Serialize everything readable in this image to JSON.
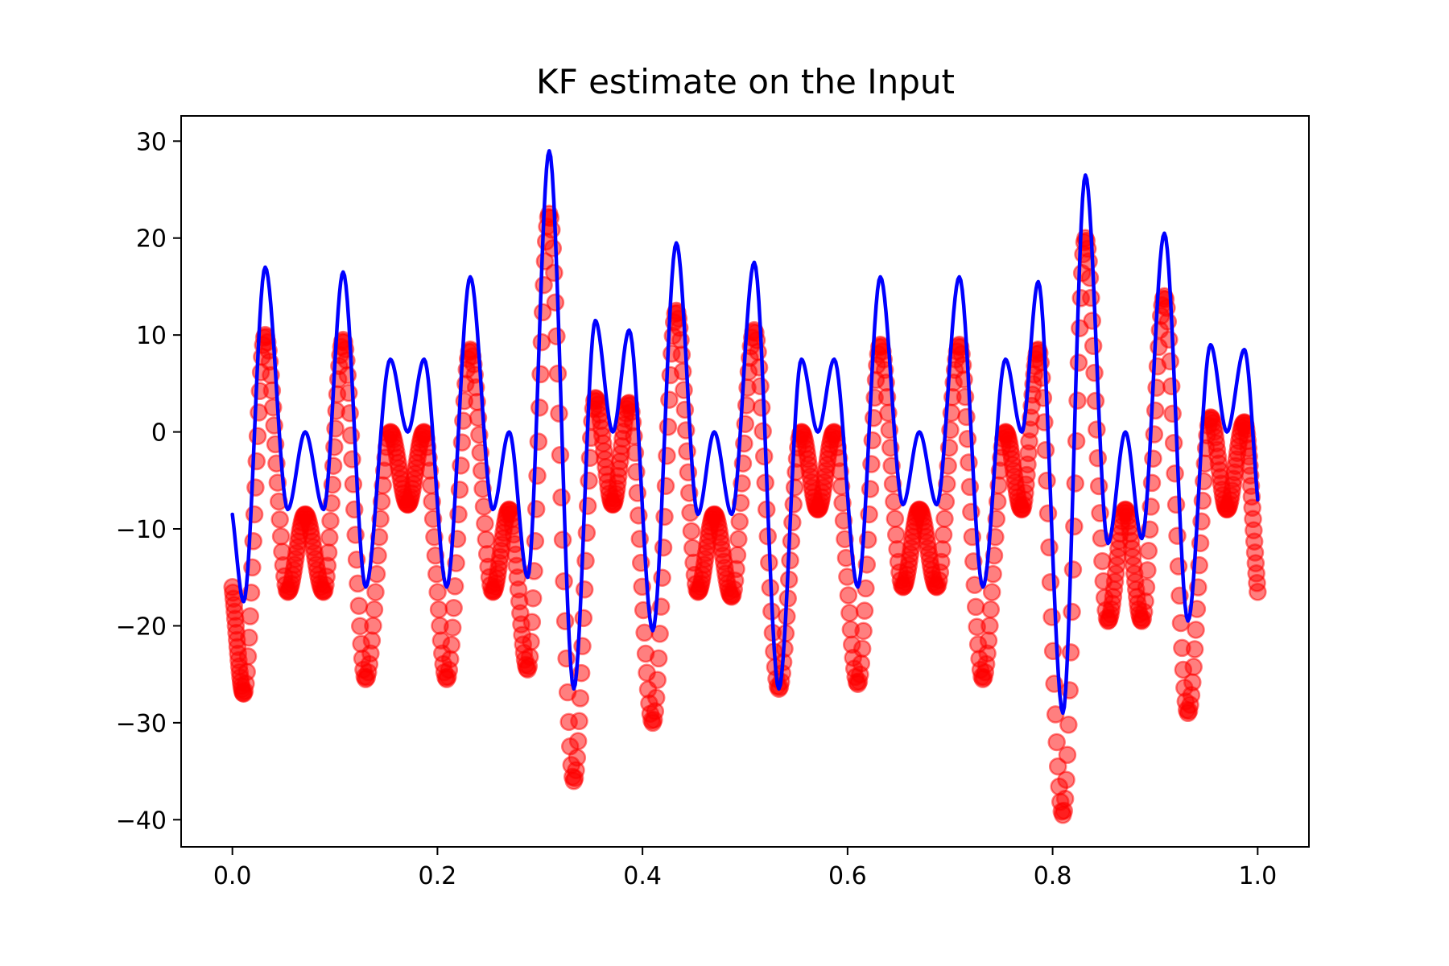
{
  "chart_data": {
    "type": "scatter",
    "title": "KF estimate on the Input",
    "xlabel": "",
    "ylabel": "",
    "xlim": [
      -0.05,
      1.05
    ],
    "ylim": [
      -42.8,
      32.6
    ],
    "x_ticks": [
      0.0,
      0.2,
      0.4,
      0.6,
      0.8,
      1.0
    ],
    "x_tick_labels": [
      "0.0",
      "0.2",
      "0.4",
      "0.6",
      "0.8",
      "1.0"
    ],
    "y_ticks": [
      -40,
      -30,
      -20,
      -10,
      0,
      10,
      20,
      30
    ],
    "y_tick_labels": [
      "−40",
      "−30",
      "−20",
      "−10",
      "0",
      "10",
      "20",
      "30"
    ],
    "grid": false,
    "legend": "none",
    "series": [
      {
        "kind": "line",
        "color": "#0000ff",
        "x": [
          0.0,
          0.011,
          0.032,
          0.054,
          0.071,
          0.089,
          0.108,
          0.13,
          0.154,
          0.171,
          0.187,
          0.209,
          0.232,
          0.254,
          0.27,
          0.288,
          0.309,
          0.333,
          0.354,
          0.371,
          0.387,
          0.41,
          0.433,
          0.454,
          0.47,
          0.487,
          0.509,
          0.533,
          0.555,
          0.571,
          0.587,
          0.61,
          0.632,
          0.654,
          0.67,
          0.687,
          0.709,
          0.732,
          0.754,
          0.77,
          0.786,
          0.81,
          0.832,
          0.854,
          0.871,
          0.887,
          0.909,
          0.932,
          0.954,
          0.97,
          0.987,
          1.0
        ],
        "y": [
          -8.5,
          -17.5,
          17.0,
          -8.0,
          0.0,
          -8.0,
          16.5,
          -16.0,
          7.5,
          0.0,
          7.5,
          -16.0,
          16.0,
          -8.0,
          0.0,
          -15.0,
          29.0,
          -26.5,
          11.5,
          0.0,
          10.5,
          -20.5,
          19.5,
          -8.5,
          0.0,
          -8.5,
          17.5,
          -26.5,
          7.5,
          0.0,
          7.5,
          -16.0,
          16.0,
          -7.5,
          0.0,
          -7.5,
          16.0,
          -16.0,
          7.5,
          0.0,
          15.5,
          -29.0,
          26.5,
          -11.5,
          0.0,
          -11.0,
          20.5,
          -19.5,
          9.0,
          0.0,
          8.5,
          -7.0
        ]
      },
      {
        "kind": "scatter",
        "color": "#ff0000",
        "x": [
          0.0,
          0.011,
          0.032,
          0.054,
          0.071,
          0.089,
          0.108,
          0.13,
          0.154,
          0.171,
          0.187,
          0.209,
          0.232,
          0.254,
          0.27,
          0.288,
          0.309,
          0.333,
          0.354,
          0.371,
          0.387,
          0.41,
          0.433,
          0.454,
          0.47,
          0.487,
          0.509,
          0.533,
          0.555,
          0.571,
          0.587,
          0.61,
          0.632,
          0.654,
          0.67,
          0.687,
          0.709,
          0.732,
          0.754,
          0.77,
          0.786,
          0.81,
          0.832,
          0.854,
          0.871,
          0.887,
          0.909,
          0.932,
          0.954,
          0.97,
          0.987,
          1.0
        ],
        "y": [
          -16.0,
          -27.0,
          10.0,
          -16.5,
          -8.5,
          -16.5,
          9.5,
          -25.5,
          0.0,
          -7.5,
          0.0,
          -25.5,
          8.5,
          -16.5,
          -8.0,
          -24.5,
          22.5,
          -36.0,
          3.5,
          -7.5,
          3.0,
          -30.0,
          12.5,
          -16.5,
          -8.5,
          -17.0,
          10.5,
          -26.5,
          0.0,
          -8.0,
          0.0,
          -26.0,
          9.0,
          -16.0,
          -8.0,
          -16.0,
          9.0,
          -25.5,
          0.0,
          -8.0,
          8.5,
          -39.5,
          20.0,
          -19.5,
          -8.0,
          -19.5,
          14.0,
          -29.0,
          1.5,
          -8.0,
          1.0,
          -16.5
        ]
      }
    ]
  }
}
